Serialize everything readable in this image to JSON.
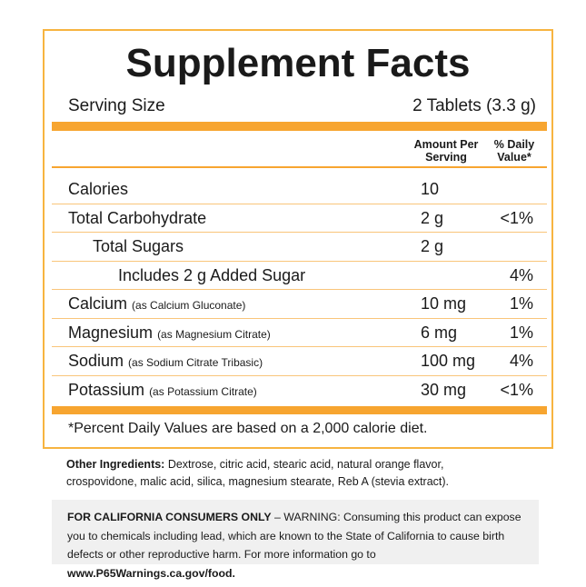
{
  "header": {
    "title": "Supplement Facts",
    "serving_size_label": "Serving Size",
    "serving_size": "2 Tablets (3.3 g)"
  },
  "table": {
    "columns": [
      "Amount Per Serving",
      "% Daily Value*"
    ],
    "rows": [
      {
        "name": "Calories",
        "amount": "10"
      },
      {
        "name": "Total Carbohydrate",
        "amount": "2 g",
        "daily_value": "<1%"
      },
      {
        "name": "Total Sugars",
        "amount": "2 g"
      },
      {
        "name": "Includes 2 g Added Sugar",
        "daily_value": "4%"
      },
      {
        "name": "Calcium",
        "note": "(as Calcium Gluconate)",
        "amount": "10 mg",
        "daily_value": "1%"
      },
      {
        "name": "Magnesium",
        "note": "(as Magnesium Citrate)",
        "amount": "6 mg",
        "daily_value": "1%"
      },
      {
        "name": "Sodium",
        "note": "(as Sodium Citrate Tribasic)",
        "amount": "100 mg",
        "daily_value": "4%"
      },
      {
        "name": "Potassium",
        "note": "(as Potassium Citrate)",
        "amount": "30 mg",
        "daily_value": "<1%"
      }
    ],
    "footnote": "*Percent Daily Values are based on a 2,000 calorie diet."
  },
  "other_ingredients": {
    "label": "Other Ingredients:",
    "text": "Dextrose, citric acid, stearic acid, natural orange flavor, crospovidone, malic acid, silica, magnesium stearate, Reb A (stevia extract)."
  },
  "warning": {
    "label": "FOR CALIFORNIA CONSUMERS ONLY",
    "text": "– WARNING: Consuming this product can expose you to chemicals including lead, which are known to the State of California to cause birth defects or other reproductive harm. For more information go to",
    "link": "www.P65Warnings.ca.gov/food."
  }
}
